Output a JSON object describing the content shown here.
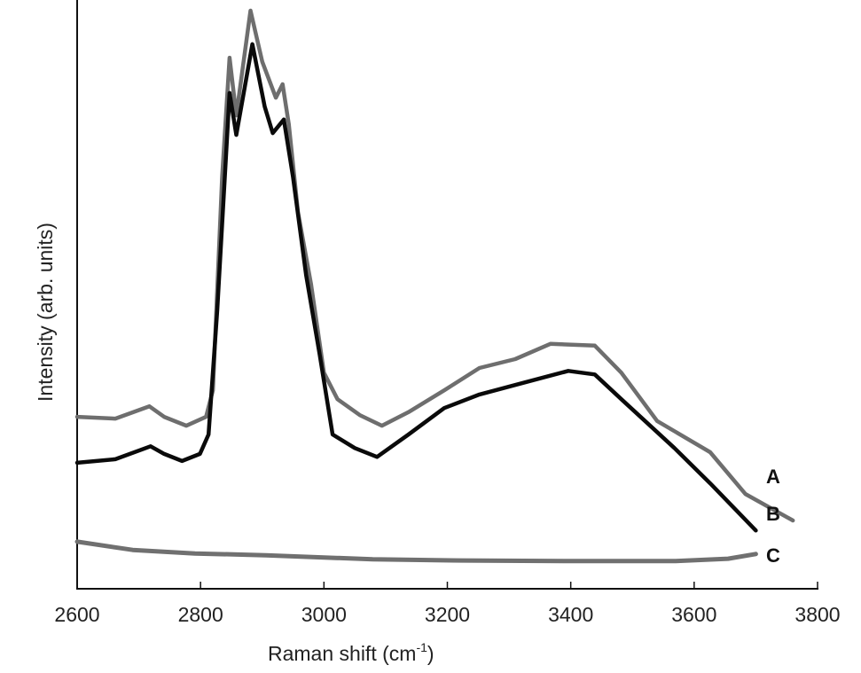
{
  "chart_data": {
    "type": "line",
    "title": "",
    "xlabel": "Raman shift (cm⁻¹)",
    "xlabel_main": "Raman shift (cm",
    "xlabel_sup": "-1",
    "xlabel_close": ")",
    "ylabel": "Intensity (arb. units)",
    "xlim": [
      2600,
      3800
    ],
    "ylim": [
      0,
      100
    ],
    "y_ticks_shown": false,
    "grid": false,
    "x_ticks": [
      2600,
      2800,
      3000,
      3200,
      3400,
      3600,
      3800
    ],
    "x_tick_labels": [
      "2600",
      "2800",
      "3000",
      "3200",
      "3400",
      "3600",
      "3800"
    ],
    "legend_position": "inline-right",
    "series": [
      {
        "name": "A",
        "color": "#6e6e6e",
        "x": [
          2600,
          2662,
          2717,
          2741,
          2777,
          2809,
          2820,
          2835,
          2847,
          2858,
          2881,
          2900,
          2922,
          2933,
          2943,
          2958,
          2979,
          3000,
          3022,
          3058,
          3094,
          3137,
          3195,
          3252,
          3310,
          3367,
          3439,
          3482,
          3540,
          3626,
          3683,
          3760
        ],
        "values": [
          29.2,
          28.9,
          31.0,
          29.2,
          27.7,
          29.2,
          33.7,
          69.9,
          90.2,
          80.4,
          98.2,
          89.5,
          83.4,
          85.7,
          78.9,
          63.9,
          51.8,
          36.7,
          32.2,
          29.5,
          27.7,
          30.0,
          33.7,
          37.5,
          39.0,
          41.6,
          41.3,
          36.7,
          28.5,
          23.2,
          16.1,
          11.6
        ]
      },
      {
        "name": "B",
        "color": "#0a0a0a",
        "x": [
          2600,
          2662,
          2719,
          2741,
          2770,
          2799,
          2813,
          2827,
          2847,
          2858,
          2884,
          2904,
          2917,
          2935,
          2950,
          2971,
          2993,
          3014,
          3050,
          3086,
          3137,
          3195,
          3252,
          3324,
          3396,
          3439,
          3482,
          3568,
          3626,
          3700
        ],
        "values": [
          21.4,
          22.0,
          24.2,
          22.9,
          21.7,
          22.9,
          26.2,
          47.3,
          84.2,
          77.1,
          92.5,
          81.9,
          77.4,
          79.7,
          69.9,
          53.3,
          39.8,
          26.2,
          23.9,
          22.4,
          26.2,
          30.7,
          33.0,
          35.0,
          37.0,
          36.4,
          32.2,
          23.9,
          17.9,
          9.9
        ]
      },
      {
        "name": "C",
        "color": "#707070",
        "x": [
          2600,
          2690,
          2791,
          2906,
          3079,
          3223,
          3396,
          3568,
          3655,
          3700
        ],
        "values": [
          8.0,
          6.6,
          6.0,
          5.7,
          5.0,
          4.8,
          4.7,
          4.7,
          5.1,
          5.9
        ]
      }
    ]
  }
}
